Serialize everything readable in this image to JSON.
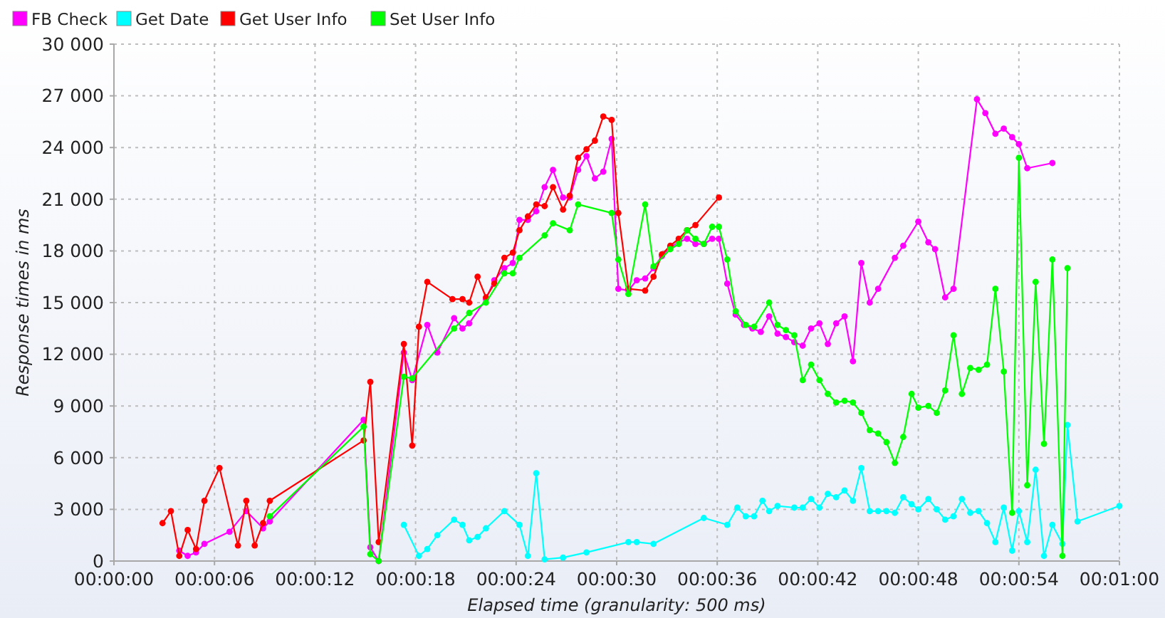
{
  "chart_data": {
    "type": "line",
    "xlabel": "Elapsed time (granularity: 500 ms)",
    "ylabel": "Response times in ms",
    "xlim": [
      0,
      60
    ],
    "xticks": [
      {
        "value": 0,
        "label": "00:00:00"
      },
      {
        "value": 6,
        "label": "00:00:06"
      },
      {
        "value": 12,
        "label": "00:00:12"
      },
      {
        "value": 18,
        "label": "00:00:18"
      },
      {
        "value": 24,
        "label": "00:00:24"
      },
      {
        "value": 30,
        "label": "00:00:30"
      },
      {
        "value": 36,
        "label": "00:00:36"
      },
      {
        "value": 42,
        "label": "00:00:42"
      },
      {
        "value": 48,
        "label": "00:00:48"
      },
      {
        "value": 54,
        "label": "00:00:54"
      },
      {
        "value": 60,
        "label": "00:01:00"
      }
    ],
    "ylim": [
      0,
      30000
    ],
    "yticks": [
      0,
      {
        "value": 3000,
        "label": "3 000"
      },
      {
        "value": 6000,
        "label": "6 000"
      },
      {
        "value": 9000,
        "label": "9 000"
      },
      {
        "value": 12000,
        "label": "12 000"
      },
      {
        "value": 15000,
        "label": "15 000"
      },
      {
        "value": 18000,
        "label": "18 000"
      },
      {
        "value": 21000,
        "label": "21 000"
      },
      {
        "value": 24000,
        "label": "24 000"
      },
      {
        "value": 27000,
        "label": "27 000"
      },
      {
        "value": 30000,
        "label": "30 000"
      }
    ],
    "grid": true,
    "legend": "top left",
    "marker": "circle",
    "series": [
      {
        "name": "FB Check",
        "color": "#ff00ff",
        "x": [
          3.9,
          4.4,
          4.9,
          5.4,
          6.9,
          7.9,
          8.9,
          9.3,
          14.9,
          15.3,
          15.8,
          17.3,
          17.8,
          18.7,
          19.3,
          20.3,
          20.8,
          21.2,
          22.2,
          22.7,
          23.3,
          23.8,
          24.2,
          24.7,
          25.2,
          25.7,
          26.2,
          26.8,
          27.2,
          27.7,
          28.2,
          28.7,
          29.2,
          29.7,
          30.1,
          30.7,
          31.2,
          31.7,
          32.2,
          32.7,
          33.2,
          33.7,
          34.2,
          34.7,
          35.2,
          35.7,
          36.1,
          36.6,
          37.1,
          37.6,
          38.1,
          38.6,
          39.1,
          39.6,
          40.1,
          40.6,
          41.1,
          41.6,
          42.1,
          42.6,
          43.1,
          43.6,
          44.1,
          44.6,
          45.1,
          45.6,
          46.6,
          47.1,
          48.0,
          48.6,
          49.0,
          49.6,
          50.1,
          51.5,
          52.0,
          52.6,
          53.1,
          53.6,
          54.0,
          54.5,
          56.0
        ],
        "values": [
          600,
          300,
          500,
          1000,
          1700,
          2900,
          1900,
          2300,
          8200,
          800,
          0,
          12100,
          10500,
          13700,
          12100,
          14100,
          13500,
          13800,
          15200,
          16300,
          17000,
          17300,
          19800,
          19800,
          20300,
          21700,
          22700,
          21100,
          21100,
          22700,
          23500,
          22200,
          22600,
          24500,
          15800,
          15700,
          16300,
          16400,
          17000,
          17700,
          18200,
          18500,
          18700,
          18400,
          18400,
          18700,
          18700,
          16100,
          14300,
          13700,
          13500,
          13300,
          14200,
          13200,
          13000,
          12700,
          12500,
          13500,
          13800,
          12600,
          13800,
          14200,
          11600,
          17300,
          15000,
          15800,
          17600,
          18300,
          19700,
          18500,
          18100,
          15300,
          15800,
          26800,
          26000,
          24800,
          25100,
          24600,
          24200,
          22800,
          23100
        ]
      },
      {
        "name": "Get Date",
        "color": "#00ffff",
        "x": [
          17.3,
          18.2,
          18.7,
          19.3,
          20.3,
          20.8,
          21.2,
          21.7,
          22.2,
          23.3,
          24.2,
          24.7,
          25.2,
          25.7,
          26.8,
          28.2,
          30.7,
          31.2,
          32.2,
          35.2,
          36.6,
          37.2,
          37.7,
          38.2,
          38.7,
          39.1,
          39.6,
          40.6,
          41.1,
          41.6,
          42.1,
          42.6,
          43.1,
          43.6,
          44.1,
          44.6,
          45.1,
          45.6,
          46.1,
          46.6,
          47.1,
          47.6,
          48.0,
          48.6,
          49.1,
          49.6,
          50.1,
          50.6,
          51.1,
          51.6,
          52.1,
          52.6,
          53.1,
          53.6,
          54.0,
          54.5,
          55.0,
          55.5,
          56.0,
          56.6,
          56.9,
          57.5,
          60.0
        ],
        "values": [
          2100,
          300,
          700,
          1500,
          2400,
          2100,
          1200,
          1400,
          1900,
          2900,
          2100,
          300,
          5100,
          100,
          200,
          500,
          1100,
          1100,
          1000,
          2500,
          2100,
          3100,
          2600,
          2600,
          3500,
          2900,
          3200,
          3100,
          3100,
          3600,
          3100,
          3900,
          3700,
          4100,
          3500,
          5400,
          2900,
          2900,
          2900,
          2800,
          3700,
          3300,
          3000,
          3600,
          3000,
          2400,
          2600,
          3600,
          2800,
          2900,
          2200,
          1100,
          3100,
          600,
          2900,
          1100,
          5300,
          300,
          2100,
          1000,
          7900,
          2300,
          3200
        ]
      },
      {
        "name": "Get User Info",
        "color": "#ff0000",
        "x": [
          2.9,
          3.4,
          3.9,
          4.4,
          4.9,
          5.4,
          6.3,
          7.4,
          7.9,
          8.4,
          8.9,
          9.3,
          14.9,
          15.3,
          15.8,
          17.3,
          17.8,
          18.2,
          18.7,
          20.2,
          20.8,
          21.2,
          21.7,
          22.2,
          22.7,
          23.3,
          23.8,
          24.2,
          24.7,
          25.2,
          25.7,
          26.2,
          26.8,
          27.2,
          27.7,
          28.2,
          28.7,
          29.2,
          29.7,
          30.1,
          30.7,
          31.7,
          32.2,
          32.7,
          33.2,
          33.7,
          34.2,
          34.7,
          36.1
        ],
        "values": [
          2200,
          2900,
          300,
          1800,
          700,
          3500,
          5400,
          900,
          3500,
          900,
          2200,
          3500,
          7000,
          10400,
          1100,
          12600,
          6700,
          13600,
          16200,
          15200,
          15200,
          15000,
          16500,
          15300,
          16100,
          17600,
          17900,
          19200,
          20000,
          20700,
          20600,
          21700,
          20400,
          21200,
          23400,
          23900,
          24400,
          25800,
          25600,
          20200,
          15800,
          15700,
          16500,
          17800,
          18300,
          18700,
          19200,
          19500,
          21100
        ]
      },
      {
        "name": "Set User Info",
        "color": "#00ff00",
        "x": [
          9.3,
          14.9,
          15.3,
          15.8,
          17.3,
          17.8,
          20.3,
          21.2,
          22.2,
          23.3,
          23.8,
          24.2,
          25.7,
          26.2,
          27.2,
          27.7,
          29.7,
          30.1,
          30.7,
          31.7,
          32.2,
          33.2,
          33.7,
          34.2,
          34.7,
          35.2,
          35.7,
          36.1,
          36.6,
          37.1,
          37.7,
          38.2,
          39.1,
          39.6,
          40.1,
          40.6,
          41.1,
          41.6,
          42.1,
          42.6,
          43.1,
          43.6,
          44.1,
          44.6,
          45.1,
          45.6,
          46.1,
          46.6,
          47.1,
          47.6,
          48.0,
          48.6,
          49.1,
          49.6,
          50.1,
          50.6,
          51.1,
          51.6,
          52.1,
          52.6,
          53.1,
          53.6,
          54.0,
          54.5,
          55.0,
          55.5,
          56.0,
          56.6,
          56.9
        ],
        "values": [
          2600,
          7800,
          400,
          0,
          10700,
          10600,
          13500,
          14400,
          15000,
          16700,
          16700,
          17600,
          18900,
          19600,
          19200,
          20700,
          20200,
          17500,
          15500,
          20700,
          17100,
          18100,
          18400,
          19200,
          18700,
          18400,
          19400,
          19400,
          17500,
          14500,
          13700,
          13600,
          15000,
          13700,
          13400,
          13100,
          10500,
          11400,
          10500,
          9700,
          9200,
          9300,
          9200,
          8600,
          7600,
          7400,
          6900,
          5700,
          7200,
          9700,
          8900,
          9000,
          8600,
          9900,
          13100,
          9700,
          11200,
          11100,
          11400,
          15800,
          11000,
          2800,
          23400,
          4400,
          16200,
          6800,
          17500,
          300,
          17000
        ]
      }
    ]
  }
}
